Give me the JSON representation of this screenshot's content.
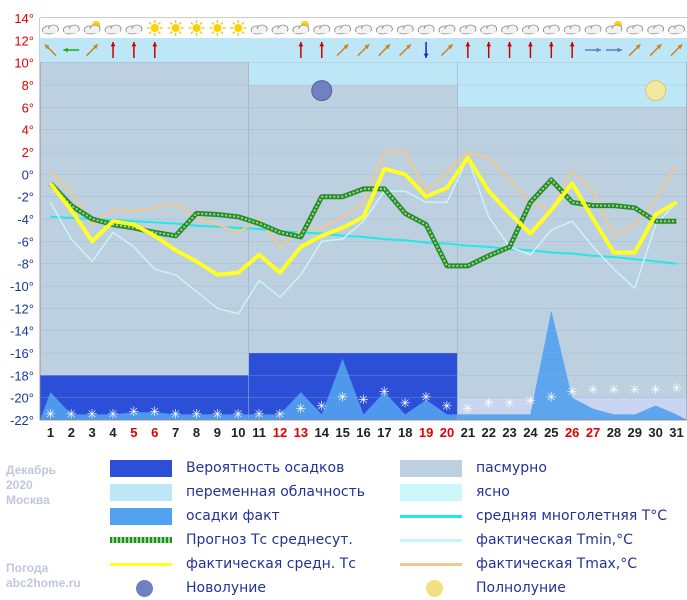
{
  "info": {
    "month": "Декабрь",
    "year": "2020",
    "city": "Москва",
    "site_line1": "Погода",
    "site_line2": "abc2home.ru"
  },
  "legend": [
    {
      "label": "Вероятность осадков",
      "color": "#2b4fd6",
      "kind": "box"
    },
    {
      "label": "пасмурно",
      "color": "#bcd0e0",
      "kind": "box"
    },
    {
      "label": "переменная облачность",
      "color": "#bde7f7",
      "kind": "box"
    },
    {
      "label": "ясно",
      "color": "#ccf8fb",
      "kind": "box"
    },
    {
      "label": "осадки факт",
      "color": "#52a0f0",
      "kind": "box"
    },
    {
      "label": "средняя многолетняя T°C",
      "color": "#22e8e8",
      "kind": "line"
    },
    {
      "label": "Прогноз Тс среднесут.",
      "color": "#2a8a2a",
      "kind": "dotted"
    },
    {
      "label": "фактическая Tmin,°C",
      "color": "#c8f4fb",
      "kind": "line"
    },
    {
      "label": "фактическая средн. Тс",
      "color": "#ffff22",
      "kind": "line"
    },
    {
      "label": "фактическая Tmax,°C",
      "color": "#f2c890",
      "kind": "line"
    },
    {
      "label": "Новолуние",
      "color": "#7080c0",
      "kind": "moon"
    },
    {
      "label": "Полнолуние",
      "color": "#f0e080",
      "kind": "moon"
    }
  ],
  "chart_data": {
    "type": "line",
    "title": "",
    "ylim": [
      -22,
      14
    ],
    "yticks": [
      "14°",
      "12°",
      "10°",
      "8°",
      "6°",
      "4°",
      "2°",
      "0°",
      "-2°",
      "-4°",
      "-6°",
      "-8°",
      "-10°",
      "-12°",
      "-14°",
      "-16°",
      "-18°",
      "-20°",
      "-22°"
    ],
    "ytick_values": [
      14,
      12,
      10,
      8,
      6,
      4,
      2,
      0,
      -2,
      -4,
      -6,
      -8,
      -10,
      -12,
      -14,
      -16,
      -18,
      -20,
      -22
    ],
    "red_yticks": [
      "14°",
      "12°",
      "10°",
      "8°",
      "6°",
      "4°",
      "2°"
    ],
    "days": [
      "1",
      "2",
      "3",
      "4",
      "5",
      "6",
      "7",
      "8",
      "9",
      "10",
      "11",
      "12",
      "13",
      "14",
      "15",
      "16",
      "17",
      "18",
      "19",
      "20",
      "21",
      "22",
      "23",
      "24",
      "25",
      "26",
      "27",
      "28",
      "29",
      "30",
      "31"
    ],
    "red_days": [
      "5",
      "6",
      "12",
      "13",
      "19",
      "20",
      "26",
      "27"
    ],
    "weather_icons": [
      "cloud",
      "cloud",
      "cloud-sun",
      "cloud",
      "cloud",
      "sun",
      "sun",
      "sun",
      "sun",
      "sun",
      "cloud",
      "cloud",
      "cloud-sun",
      "cloud",
      "cloud",
      "cloud",
      "cloud",
      "cloud",
      "cloud",
      "cloud",
      "cloud",
      "cloud",
      "cloud",
      "cloud",
      "cloud",
      "cloud",
      "cloud",
      "cloud-sun",
      "cloud",
      "cloud",
      "cloud"
    ],
    "wind_arrows": [
      "up-left",
      "left",
      "up-right",
      "up",
      "up",
      "up",
      "",
      "",
      "",
      "",
      "",
      "",
      "up",
      "up",
      "up-right",
      "up-right",
      "up-right",
      "up-right",
      "down",
      "up-right",
      "up",
      "up",
      "up",
      "up",
      "up",
      "up",
      "right",
      "right",
      "up-right",
      "up-right",
      "up-right"
    ],
    "cloud_background": [
      {
        "from_day": 1,
        "to_day": 10,
        "value": "overcast"
      },
      {
        "from_day": 11,
        "to_day": 20,
        "value": "partly"
      },
      {
        "from_day": 21,
        "to_day": 31,
        "value": "partly"
      }
    ],
    "cloud_band_level": [
      10,
      10,
      10,
      10,
      10,
      10,
      10,
      10,
      10,
      10,
      8,
      8,
      8,
      8,
      8,
      8,
      8,
      8,
      8,
      8,
      6,
      6,
      6,
      6,
      6,
      6,
      6,
      6,
      6,
      6,
      6
    ],
    "precip_probability_level": [
      {
        "from_day": 1,
        "to_day": 10,
        "value": -18
      },
      {
        "from_day": 11,
        "to_day": 20,
        "value": -16
      },
      {
        "from_day": 21,
        "to_day": 31,
        "value": -20
      }
    ],
    "precip_fact": [
      -19.5,
      -21.5,
      -21.5,
      -21.5,
      -21.3,
      -21.3,
      -21.5,
      -21.5,
      -21.5,
      -21.5,
      -21.5,
      -21.5,
      -19.5,
      -21.5,
      -16.5,
      -21.5,
      -19.5,
      -21.5,
      -20.2,
      -21.5,
      -21.5,
      -21.5,
      -21.5,
      -21.5,
      -12.2,
      -20.0,
      -21.0,
      -21.5,
      -21.5,
      -20.7,
      -21.5
    ],
    "snow_markers": [
      -21.5,
      -21.5,
      -21.5,
      -21.5,
      -21.3,
      -21.3,
      -21.5,
      -21.5,
      -21.5,
      -21.5,
      -21.5,
      -21.5,
      -21.0,
      -20.8,
      -20.0,
      -20.2,
      -19.5,
      -20.5,
      -20.0,
      -20.8,
      -21.0,
      -20.5,
      -20.5,
      -20.3,
      -20.0,
      -19.5,
      -19.3,
      -19.3,
      -19.3,
      -19.3,
      -19.2
    ],
    "series": [
      {
        "name": "фактическая Tmax,°C",
        "color": "#f2c890",
        "values": [
          0.2,
          -1.5,
          -4.5,
          -3.2,
          -3.2,
          -3.0,
          -2.6,
          -3.9,
          -4.5,
          -5.2,
          -4.0,
          -6.5,
          -5.0,
          -4.8,
          -3.8,
          -2.5,
          2.0,
          2.0,
          -1.5,
          0.2,
          2.0,
          1.5,
          -0.5,
          -2.5,
          -3.2,
          0.3,
          -1.5,
          -5.5,
          -4.5,
          -2.2,
          0.8
        ]
      },
      {
        "name": "фактическая Tmin,°C",
        "color": "#c8f4fb",
        "values": [
          -2.5,
          -5.8,
          -7.8,
          -5.2,
          -6.5,
          -8.5,
          -9.0,
          -10.5,
          -12.0,
          -12.5,
          -9.5,
          -11.0,
          -9.0,
          -6.0,
          -5.8,
          -4.2,
          -1.5,
          -1.5,
          -2.5,
          -2.5,
          1.5,
          -3.8,
          -6.5,
          -7.2,
          -5.0,
          -4.2,
          -6.5,
          -8.5,
          -10.2,
          -4.5,
          -2.5
        ]
      },
      {
        "name": "фактическая средн. Тс",
        "color": "#ffff22",
        "values": [
          -0.8,
          -3.2,
          -6.0,
          -4.2,
          -4.5,
          -5.5,
          -6.8,
          -7.8,
          -9.0,
          -8.8,
          -7.2,
          -8.8,
          -6.5,
          -5.5,
          -4.8,
          -3.8,
          0.5,
          0.0,
          -2.0,
          -1.2,
          1.5,
          -1.5,
          -3.5,
          -5.3,
          -3.2,
          -0.8,
          -4.0,
          -7.0,
          -7.0,
          -3.6,
          -2.5
        ]
      },
      {
        "name": "Прогноз Тс среднесут.",
        "color": "#2a8a2a",
        "values": [
          -0.8,
          -2.8,
          -4.0,
          -4.5,
          -4.8,
          -5.2,
          -5.5,
          -3.5,
          -3.6,
          -3.8,
          -4.4,
          -5.2,
          -5.6,
          -2.0,
          -2.0,
          -1.3,
          -1.3,
          -3.5,
          -4.5,
          -8.2,
          -8.2,
          -7.3,
          -6.5,
          -2.5,
          -0.5,
          -2.5,
          -2.8,
          -2.8,
          -3.0,
          -4.2,
          -4.2
        ]
      },
      {
        "name": "средняя многолетняя T°C",
        "color": "#22e8e8",
        "values": [
          -3.8,
          -3.9,
          -4.0,
          -4.1,
          -4.2,
          -4.3,
          -4.4,
          -4.6,
          -4.7,
          -4.8,
          -4.9,
          -5.1,
          -5.2,
          -5.3,
          -5.5,
          -5.6,
          -5.8,
          -5.9,
          -6.1,
          -6.2,
          -6.4,
          -6.5,
          -6.7,
          -6.8,
          -7.0,
          -7.1,
          -7.3,
          -7.4,
          -7.6,
          -7.8,
          -8.0
        ]
      }
    ],
    "new_moon_day": 14,
    "full_moon_day": 30,
    "moon_level": 7.5
  }
}
